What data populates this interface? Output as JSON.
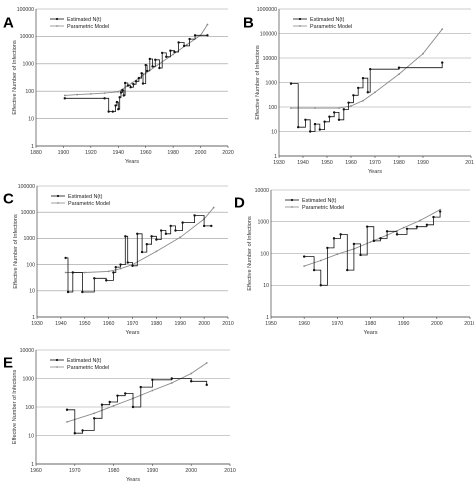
{
  "chart_data": [
    {
      "panel": "A",
      "type": "line",
      "xlabel": "Years",
      "ylabel": "Effective Number of Infections",
      "xlim": [
        1880,
        2020
      ],
      "ylim": [
        1,
        100000
      ],
      "yscale": "log",
      "xticks": [
        "1880",
        "1900",
        "1920",
        "1940",
        "1960",
        "1980",
        "2000",
        "2020"
      ],
      "yticks": [
        "1",
        "10",
        "100",
        "1000",
        "10000",
        "100000"
      ],
      "series": [
        {
          "name": "Estimated N(t)",
          "style": "step",
          "x": [
            1901,
            1930,
            1933,
            1936,
            1938,
            1939,
            1940,
            1941,
            1942,
            1943,
            1944,
            1945,
            1947,
            1949,
            1951,
            1953,
            1955,
            1957,
            1958,
            1960,
            1961,
            1963,
            1965,
            1967,
            1970,
            1972,
            1975,
            1978,
            1981,
            1984,
            1988,
            1992,
            1996,
            2005
          ],
          "y": [
            55,
            55,
            18,
            18,
            30,
            40,
            22,
            60,
            90,
            110,
            70,
            200,
            160,
            140,
            180,
            230,
            300,
            450,
            190,
            900,
            550,
            1500,
            800,
            1400,
            700,
            2500,
            1800,
            3000,
            2700,
            6000,
            4500,
            8000,
            11000,
            11000
          ]
        },
        {
          "name": "Parametric Model",
          "style": "line",
          "x": [
            1901,
            1910,
            1920,
            1930,
            1940,
            1950,
            1960,
            1970,
            1980,
            1990,
            2000,
            2005
          ],
          "y": [
            70,
            75,
            80,
            85,
            95,
            200,
            450,
            1000,
            2200,
            5000,
            11000,
            27000
          ]
        }
      ]
    },
    {
      "panel": "B",
      "type": "line",
      "xlabel": "Years",
      "ylabel": "Effective Number of Infections",
      "xlim": [
        1930,
        2010
      ],
      "ylim": [
        1,
        1000000
      ],
      "yscale": "log",
      "xticks": [
        "1930",
        "1940",
        "1950",
        "1960",
        "1970",
        "1980",
        "1990",
        "2010"
      ],
      "yticks": [
        "1",
        "10",
        "100",
        "1000",
        "10000",
        "100000",
        "1000000"
      ],
      "series": [
        {
          "name": "Estimated N(t)",
          "style": "step",
          "x": [
            1935,
            1938,
            1941,
            1943,
            1945,
            1947,
            1949,
            1951,
            1953,
            1955,
            1957,
            1959,
            1961,
            1963,
            1965,
            1967,
            1968,
            1980,
            1998
          ],
          "y": [
            900,
            15,
            30,
            10,
            20,
            12,
            25,
            40,
            60,
            30,
            80,
            150,
            300,
            600,
            1500,
            400,
            3500,
            4000,
            6500
          ]
        },
        {
          "name": "Parametric Model",
          "style": "line",
          "x": [
            1935,
            1945,
            1955,
            1960,
            1965,
            1970,
            1980,
            1990,
            1998
          ],
          "y": [
            90,
            90,
            90,
            110,
            180,
            400,
            2200,
            15000,
            150000
          ]
        }
      ]
    },
    {
      "panel": "C",
      "type": "line",
      "xlabel": "Years",
      "ylabel": "Effective Number of Infections",
      "xlim": [
        1930,
        2010
      ],
      "ylim": [
        1,
        100000
      ],
      "yscale": "log",
      "xticks": [
        "1930",
        "1940",
        "1950",
        "1960",
        "1970",
        "1980",
        "1990",
        "2000",
        "2010"
      ],
      "yticks": [
        "1",
        "10",
        "100",
        "1000",
        "10000",
        "100000"
      ],
      "series": [
        {
          "name": "Estimated N(t)",
          "style": "step",
          "x": [
            1942,
            1943,
            1945,
            1949,
            1954,
            1959,
            1962,
            1963,
            1965,
            1967,
            1968,
            1970,
            1972,
            1974,
            1976,
            1978,
            1980,
            1982,
            1984,
            1986,
            1988,
            1991,
            1996,
            2000,
            2003
          ],
          "y": [
            180,
            9,
            50,
            9,
            30,
            25,
            50,
            80,
            100,
            1200,
            120,
            90,
            1500,
            300,
            600,
            1200,
            900,
            2000,
            1500,
            3000,
            2000,
            4000,
            7500,
            3000,
            3000
          ]
        },
        {
          "name": "Parametric Model",
          "style": "line",
          "x": [
            1942,
            1950,
            1960,
            1965,
            1970,
            1980,
            1990,
            2000,
            2004
          ],
          "y": [
            50,
            50,
            55,
            70,
            100,
            320,
            1100,
            5500,
            15000
          ]
        }
      ]
    },
    {
      "panel": "D",
      "type": "line",
      "xlabel": "Years",
      "ylabel": "Effective Number of Infections",
      "xlim": [
        1950,
        2010
      ],
      "ylim": [
        1,
        10000
      ],
      "yscale": "log",
      "xticks": [
        "1950",
        "1960",
        "1970",
        "1980",
        "1990",
        "2000",
        "2010"
      ],
      "yticks": [
        "1",
        "10",
        "100",
        "1000",
        "10000"
      ],
      "series": [
        {
          "name": "Estimated N(t)",
          "style": "step",
          "x": [
            1960,
            1963,
            1965,
            1967,
            1969,
            1971,
            1973,
            1975,
            1977,
            1979,
            1981,
            1983,
            1985,
            1988,
            1991,
            1994,
            1997,
            1999,
            2001
          ],
          "y": [
            80,
            30,
            10,
            150,
            300,
            400,
            30,
            200,
            90,
            700,
            250,
            300,
            500,
            400,
            600,
            700,
            800,
            1400,
            2100
          ]
        },
        {
          "name": "Parametric Model",
          "style": "line",
          "x": [
            1960,
            1965,
            1970,
            1975,
            1980,
            1985,
            1990,
            1995,
            2001
          ],
          "y": [
            40,
            60,
            95,
            140,
            230,
            380,
            650,
            1100,
            2400
          ]
        }
      ]
    },
    {
      "panel": "E",
      "type": "line",
      "xlabel": "Years",
      "ylabel": "Effective Number of Infections",
      "xlim": [
        1960,
        2010
      ],
      "ylim": [
        1,
        10000
      ],
      "yscale": "log",
      "xticks": [
        "1960",
        "1970",
        "1980",
        "1990",
        "2000",
        "2010"
      ],
      "yticks": [
        "1",
        "10",
        "100",
        "1000",
        "10000"
      ],
      "series": [
        {
          "name": "Estimated N(t)",
          "style": "step",
          "x": [
            1968,
            1970,
            1972,
            1975,
            1977,
            1979,
            1981,
            1983,
            1985,
            1987,
            1990,
            1995,
            2000,
            2004
          ],
          "y": [
            80,
            12,
            15,
            40,
            120,
            150,
            250,
            300,
            100,
            500,
            900,
            1000,
            800,
            600
          ]
        },
        {
          "name": "Parametric Model",
          "style": "line",
          "x": [
            1968,
            1975,
            1980,
            1985,
            1990,
            1995,
            2000,
            2004
          ],
          "y": [
            30,
            60,
            110,
            200,
            380,
            700,
            1500,
            3500
          ]
        }
      ]
    }
  ]
}
